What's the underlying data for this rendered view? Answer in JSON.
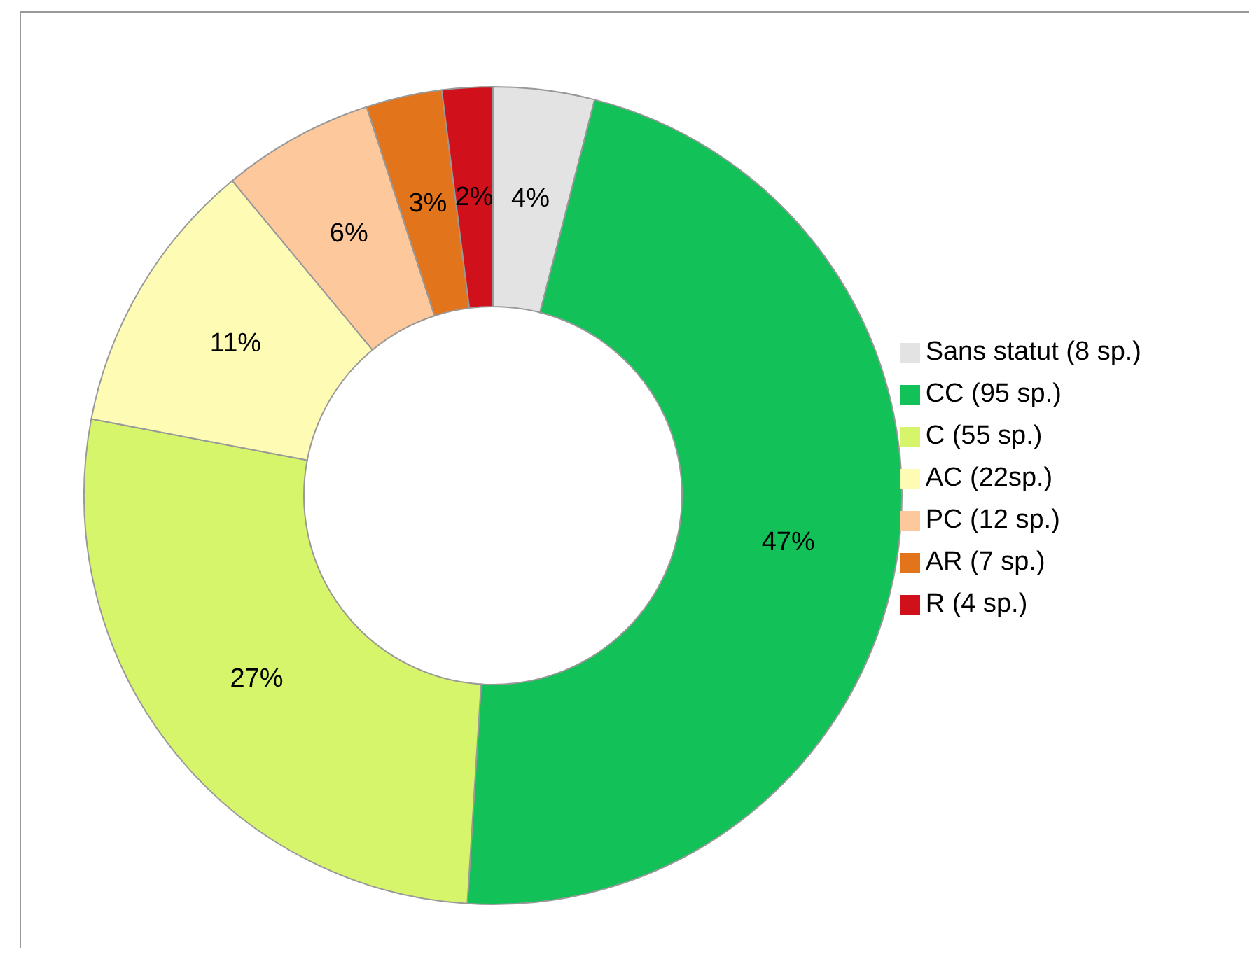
{
  "chart_data": {
    "type": "donut",
    "categories": [
      "Sans statut (8 sp.)",
      "CC (95 sp.)",
      "C (55 sp.)",
      "AC (22sp.)",
      "PC (12 sp.)",
      "AR (7 sp.)",
      "R (4 sp.)"
    ],
    "values": [
      4,
      47,
      27,
      11,
      6,
      3,
      2
    ],
    "colors": [
      "#e3e3e3",
      "#12c157",
      "#d6f56a",
      "#fdfbb4",
      "#fcc89c",
      "#e2741c",
      "#d0101a"
    ],
    "value_labels": [
      "4%",
      "47%",
      "27%",
      "11%",
      "6%",
      "3%",
      "2%"
    ],
    "legend": "right"
  }
}
